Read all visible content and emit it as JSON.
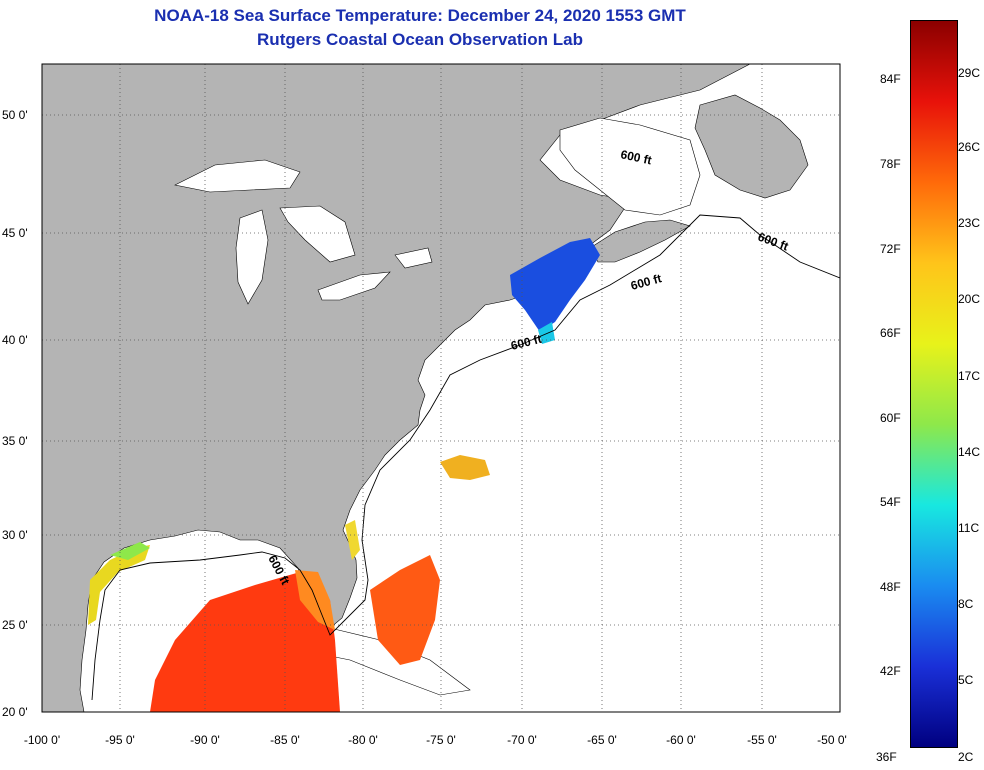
{
  "title": {
    "line1": "NOAA-18 Sea Surface Temperature:  December 24, 2020 1553 GMT",
    "line2": "Rutgers Coastal Ocean Observation Lab"
  },
  "axes": {
    "lat_labels": [
      "50 0'",
      "45 0'",
      "40 0'",
      "35 0'",
      "30 0'",
      "25 0'",
      "20 0'"
    ],
    "lon_labels": [
      "-100 0'",
      "-95 0'",
      "-90 0'",
      "-85 0'",
      "-80 0'",
      "-75 0'",
      "-70 0'",
      "-65 0'",
      "-60 0'",
      "-55 0'",
      "-50 0'"
    ]
  },
  "contour_labels": [
    "600 ft",
    "600 ft",
    "600 ft",
    "600 ft",
    "600 ft"
  ],
  "colorbar": {
    "fahrenheit": [
      "84F",
      "78F",
      "72F",
      "66F",
      "60F",
      "54F",
      "48F",
      "42F",
      "36F"
    ],
    "celsius": [
      "29C",
      "26C",
      "23C",
      "20C",
      "17C",
      "14C",
      "11C",
      "8C",
      "5C",
      "2C"
    ],
    "colors": [
      "#8b0000",
      "#e8120a",
      "#ff6a0a",
      "#ffc41a",
      "#e8f21a",
      "#8ee84a",
      "#18e8e0",
      "#1a8cf0",
      "#1a30d8",
      "#000080"
    ]
  },
  "colors": {
    "land": "#b4b4b4",
    "ocean": "#ffffff",
    "title": "#1a2fb0",
    "grid": "#555555"
  }
}
